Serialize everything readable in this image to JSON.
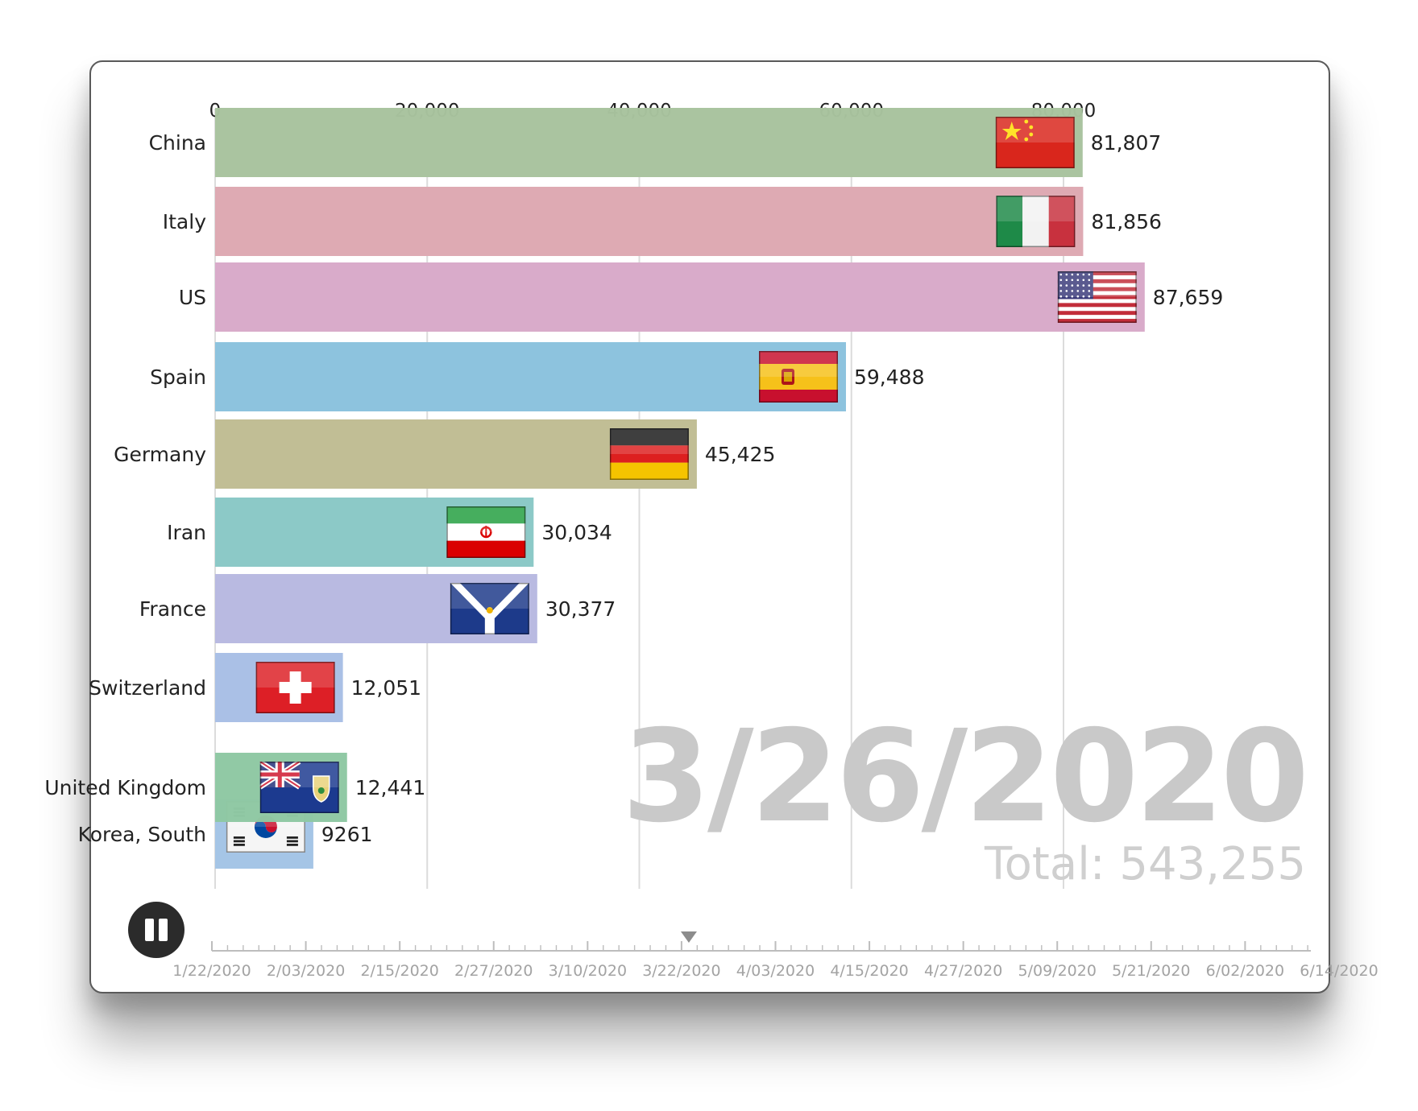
{
  "chart_data": {
    "type": "bar",
    "orientation": "horizontal",
    "title": "",
    "xlabel": "",
    "ylabel": "",
    "xlim": [
      0,
      100000
    ],
    "x_ticks": [
      "0",
      "20,000",
      "40,000",
      "60,000",
      "80,000"
    ],
    "x_tick_values": [
      0,
      20000,
      40000,
      60000,
      80000
    ],
    "grid": true,
    "categories": [
      "China",
      "Italy",
      "US",
      "Spain",
      "Germany",
      "Iran",
      "France",
      "Switzerland",
      "United Kingdom",
      "Korea, South"
    ],
    "category_labels": [
      "China",
      "Italy",
      "US",
      "Spain",
      "Germany",
      "Iran",
      "France",
      "Switzerland",
      "United Kingdom",
      "Korea, South"
    ],
    "values": [
      81807,
      81856,
      87659,
      59488,
      45425,
      30034,
      30377,
      12051,
      12441,
      9261
    ],
    "value_labels": [
      "81,807",
      "81,856",
      "87,659",
      "59,488",
      "45,425",
      "30,034",
      "30,377",
      "12,051",
      "12,441",
      "9261"
    ],
    "bar_colors": [
      "#a8c39e",
      "#dda8b1",
      "#d8a9c9",
      "#8bc2dd",
      "#c0bd93",
      "#8ac8c6",
      "#b8b9e0",
      "#a8bfe6",
      "#8fc8a3",
      "#a3c4e6"
    ],
    "flag_icons": [
      "china-flag-icon",
      "italy-flag-icon",
      "us-flag-icon",
      "spain-flag-icon",
      "germany-flag-icon",
      "iran-flag-icon",
      "france-flag-icon",
      "switzerland-flag-icon",
      "united-kingdom-flag-icon",
      "korea-south-flag-icon"
    ],
    "date": "3/26/2020",
    "total_label": "Total: 543,255",
    "timeline": {
      "ticks": [
        "1/22/2020",
        "2/03/2020",
        "2/15/2020",
        "2/27/2020",
        "3/10/2020",
        "3/22/2020",
        "4/03/2020",
        "4/15/2020",
        "4/27/2020",
        "5/09/2020",
        "5/21/2020",
        "6/02/2020",
        "6/14/2020"
      ],
      "current_index_fraction": 0.434
    }
  },
  "controls": {
    "pause_icon": "pause-icon"
  }
}
